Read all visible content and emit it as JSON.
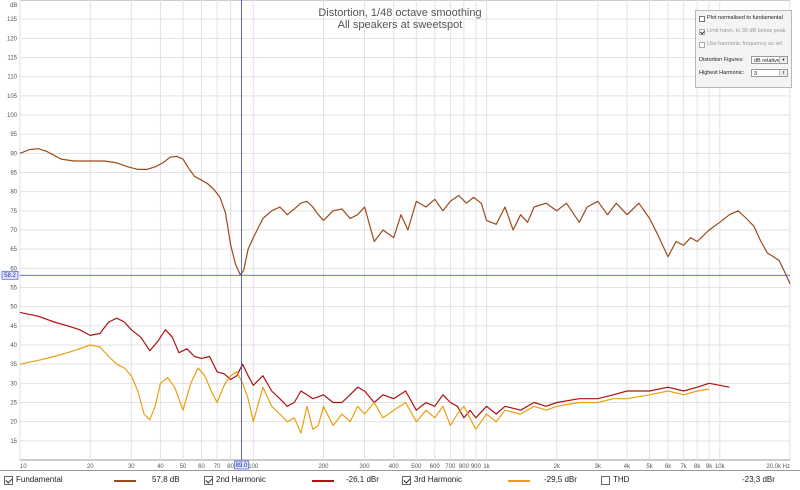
{
  "chart_data": {
    "type": "line",
    "title": "Distortion, 1/48 octave smoothing",
    "subtitle": "All speakers at sweetspot",
    "ylabel": "dB",
    "xscale": "log",
    "xlim": [
      10,
      20000
    ],
    "ylim": [
      10,
      130
    ],
    "yticks": [
      "15",
      "20",
      "25",
      "30",
      "35",
      "40",
      "45",
      "50",
      "55",
      "60",
      "65",
      "70",
      "75",
      "80",
      "85",
      "90",
      "95",
      "100",
      "105",
      "110",
      "115",
      "120",
      "125"
    ],
    "xticks": [
      {
        "v": 10,
        "t": "10"
      },
      {
        "v": 20,
        "t": "20"
      },
      {
        "v": 30,
        "t": "30"
      },
      {
        "v": 40,
        "t": "40"
      },
      {
        "v": 50,
        "t": "50"
      },
      {
        "v": 60,
        "t": "60"
      },
      {
        "v": 70,
        "t": "70"
      },
      {
        "v": 80,
        "t": "80"
      },
      {
        "v": 100,
        "t": "100"
      },
      {
        "v": 200,
        "t": "200"
      },
      {
        "v": 300,
        "t": "300"
      },
      {
        "v": 400,
        "t": "400"
      },
      {
        "v": 500,
        "t": "500"
      },
      {
        "v": 600,
        "t": "600"
      },
      {
        "v": 700,
        "t": "700"
      },
      {
        "v": 800,
        "t": "800"
      },
      {
        "v": 900,
        "t": "900"
      },
      {
        "v": 1000,
        "t": "1k"
      },
      {
        "v": 2000,
        "t": "2k"
      },
      {
        "v": 3000,
        "t": "3k"
      },
      {
        "v": 4000,
        "t": "4k"
      },
      {
        "v": 5000,
        "t": "5k"
      },
      {
        "v": 6000,
        "t": "6k"
      },
      {
        "v": 7000,
        "t": "7k"
      },
      {
        "v": 8000,
        "t": "8k"
      },
      {
        "v": 9000,
        "t": "9k"
      },
      {
        "v": 10000,
        "t": "10k"
      },
      {
        "v": 20000,
        "t": "20.0k Hz"
      }
    ],
    "cursor": {
      "x": 89.0,
      "y": 58.2,
      "x_label": "89.0",
      "y_label": "58.2"
    },
    "grid": true,
    "series": [
      {
        "name": "Fundamental",
        "color": "#9a4a1c",
        "points": [
          [
            10,
            90
          ],
          [
            11,
            91
          ],
          [
            12,
            91.2
          ],
          [
            13,
            90.5
          ],
          [
            14,
            89.5
          ],
          [
            15,
            88.5
          ],
          [
            17,
            88
          ],
          [
            20,
            88
          ],
          [
            23,
            88
          ],
          [
            26,
            87.5
          ],
          [
            29,
            86.5
          ],
          [
            32,
            85.8
          ],
          [
            35,
            85.8
          ],
          [
            38,
            86.5
          ],
          [
            41,
            87.5
          ],
          [
            44,
            89
          ],
          [
            47,
            89.2
          ],
          [
            50,
            88.5
          ],
          [
            53,
            86
          ],
          [
            56,
            84
          ],
          [
            60,
            83
          ],
          [
            64,
            82
          ],
          [
            68,
            80.5
          ],
          [
            72,
            78.5
          ],
          [
            76,
            74.5
          ],
          [
            80,
            66
          ],
          [
            84,
            61
          ],
          [
            88,
            58.3
          ],
          [
            91,
            59.5
          ],
          [
            95,
            65
          ],
          [
            100,
            68
          ],
          [
            110,
            73
          ],
          [
            120,
            75
          ],
          [
            130,
            76
          ],
          [
            140,
            74
          ],
          [
            150,
            75.5
          ],
          [
            160,
            77
          ],
          [
            170,
            77.5
          ],
          [
            180,
            76
          ],
          [
            190,
            74
          ],
          [
            200,
            72.5
          ],
          [
            220,
            75
          ],
          [
            240,
            75.5
          ],
          [
            260,
            73
          ],
          [
            280,
            74
          ],
          [
            300,
            76
          ],
          [
            330,
            67
          ],
          [
            360,
            70
          ],
          [
            400,
            68
          ],
          [
            430,
            74
          ],
          [
            460,
            70
          ],
          [
            500,
            77.5
          ],
          [
            550,
            76
          ],
          [
            600,
            78
          ],
          [
            650,
            75
          ],
          [
            700,
            77.5
          ],
          [
            760,
            79
          ],
          [
            820,
            77
          ],
          [
            880,
            78.5
          ],
          [
            950,
            77
          ],
          [
            1000,
            72.5
          ],
          [
            1100,
            71.5
          ],
          [
            1200,
            76
          ],
          [
            1300,
            70
          ],
          [
            1400,
            74
          ],
          [
            1500,
            72
          ],
          [
            1600,
            76
          ],
          [
            1800,
            77
          ],
          [
            2000,
            75
          ],
          [
            2200,
            77
          ],
          [
            2500,
            72
          ],
          [
            2700,
            76
          ],
          [
            3000,
            77.5
          ],
          [
            3300,
            74
          ],
          [
            3600,
            77
          ],
          [
            4000,
            74
          ],
          [
            4500,
            77
          ],
          [
            5000,
            73
          ],
          [
            5500,
            68
          ],
          [
            6000,
            63
          ],
          [
            6500,
            67
          ],
          [
            7000,
            66
          ],
          [
            7500,
            68
          ],
          [
            8000,
            67
          ],
          [
            9000,
            70
          ],
          [
            10000,
            72
          ],
          [
            11000,
            74
          ],
          [
            12000,
            75
          ],
          [
            13000,
            73
          ],
          [
            14000,
            71
          ],
          [
            15000,
            67
          ],
          [
            16000,
            64
          ],
          [
            17000,
            63
          ],
          [
            18000,
            62
          ],
          [
            19000,
            59
          ],
          [
            20000,
            56
          ]
        ]
      },
      {
        "name": "2nd Harmonic",
        "color": "#b01010",
        "points": [
          [
            10,
            48.5
          ],
          [
            12,
            47.5
          ],
          [
            14,
            46
          ],
          [
            16,
            45
          ],
          [
            18,
            44
          ],
          [
            20,
            42.5
          ],
          [
            22,
            43
          ],
          [
            24,
            46
          ],
          [
            26,
            47
          ],
          [
            28,
            46
          ],
          [
            30,
            44
          ],
          [
            33,
            42
          ],
          [
            36,
            38.5
          ],
          [
            39,
            41
          ],
          [
            42,
            44
          ],
          [
            45,
            42
          ],
          [
            48,
            38
          ],
          [
            52,
            39
          ],
          [
            56,
            37
          ],
          [
            60,
            36.5
          ],
          [
            65,
            37
          ],
          [
            70,
            33
          ],
          [
            75,
            32.5
          ],
          [
            80,
            31
          ],
          [
            85,
            32
          ],
          [
            90,
            35
          ],
          [
            95,
            32
          ],
          [
            100,
            29.5
          ],
          [
            110,
            32
          ],
          [
            120,
            28
          ],
          [
            130,
            26
          ],
          [
            140,
            24
          ],
          [
            150,
            25
          ],
          [
            160,
            28
          ],
          [
            170,
            27
          ],
          [
            180,
            26
          ],
          [
            190,
            26.5
          ],
          [
            200,
            27
          ],
          [
            220,
            25
          ],
          [
            240,
            25
          ],
          [
            260,
            27
          ],
          [
            280,
            29
          ],
          [
            300,
            28
          ],
          [
            330,
            25
          ],
          [
            360,
            27
          ],
          [
            400,
            26
          ],
          [
            450,
            28
          ],
          [
            500,
            23
          ],
          [
            550,
            25
          ],
          [
            600,
            24
          ],
          [
            650,
            27
          ],
          [
            700,
            25
          ],
          [
            750,
            24
          ],
          [
            800,
            21
          ],
          [
            850,
            23
          ],
          [
            900,
            21
          ],
          [
            1000,
            24
          ],
          [
            1100,
            22
          ],
          [
            1200,
            24
          ],
          [
            1400,
            23
          ],
          [
            1600,
            25
          ],
          [
            1800,
            24
          ],
          [
            2000,
            25
          ],
          [
            2500,
            26
          ],
          [
            3000,
            26
          ],
          [
            3500,
            27
          ],
          [
            4000,
            28
          ],
          [
            5000,
            28
          ],
          [
            6000,
            29
          ],
          [
            7000,
            28
          ],
          [
            8000,
            29
          ],
          [
            9000,
            30
          ],
          [
            10000,
            29.5
          ],
          [
            11000,
            29
          ]
        ]
      },
      {
        "name": "3rd Harmonic",
        "color": "#e8a010",
        "points": [
          [
            10,
            35
          ],
          [
            12,
            36
          ],
          [
            14,
            37
          ],
          [
            16,
            38
          ],
          [
            18,
            39
          ],
          [
            20,
            40
          ],
          [
            22,
            39.5
          ],
          [
            24,
            37
          ],
          [
            26,
            35
          ],
          [
            28,
            34
          ],
          [
            30,
            32
          ],
          [
            32,
            28
          ],
          [
            34,
            22
          ],
          [
            36,
            20.5
          ],
          [
            38,
            24
          ],
          [
            40,
            30
          ],
          [
            43,
            31.5
          ],
          [
            46,
            29
          ],
          [
            50,
            23
          ],
          [
            54,
            30
          ],
          [
            58,
            34
          ],
          [
            62,
            32
          ],
          [
            66,
            28
          ],
          [
            70,
            25
          ],
          [
            75,
            29.5
          ],
          [
            80,
            32
          ],
          [
            85,
            33
          ],
          [
            90,
            30
          ],
          [
            95,
            26
          ],
          [
            100,
            20
          ],
          [
            110,
            29
          ],
          [
            120,
            24
          ],
          [
            130,
            22
          ],
          [
            140,
            20
          ],
          [
            150,
            21
          ],
          [
            160,
            17
          ],
          [
            170,
            24
          ],
          [
            180,
            18
          ],
          [
            190,
            19
          ],
          [
            200,
            24
          ],
          [
            220,
            19
          ],
          [
            240,
            22
          ],
          [
            260,
            20
          ],
          [
            280,
            24
          ],
          [
            300,
            22
          ],
          [
            330,
            25
          ],
          [
            360,
            21
          ],
          [
            400,
            23
          ],
          [
            450,
            25
          ],
          [
            500,
            20
          ],
          [
            550,
            23
          ],
          [
            600,
            21
          ],
          [
            650,
            24
          ],
          [
            700,
            19
          ],
          [
            750,
            22
          ],
          [
            800,
            24
          ],
          [
            900,
            18
          ],
          [
            1000,
            22
          ],
          [
            1100,
            20
          ],
          [
            1200,
            23
          ],
          [
            1400,
            22
          ],
          [
            1600,
            24
          ],
          [
            1800,
            23
          ],
          [
            2000,
            24
          ],
          [
            2500,
            25
          ],
          [
            3000,
            25
          ],
          [
            3500,
            26
          ],
          [
            4000,
            26
          ],
          [
            5000,
            27
          ],
          [
            6000,
            28
          ],
          [
            7000,
            27
          ],
          [
            8000,
            28
          ],
          [
            9000,
            28.5
          ]
        ]
      }
    ]
  },
  "controls": {
    "plot_normalised_label": "Plot normalised to fundamental",
    "limit_label": "Limit harm. to 30 dB below peak",
    "use_harmonic_label": "Use harmonic frequency as ref.",
    "distortion_figures_label": "Distortion Figures:",
    "distortion_figures_value": "dB relative",
    "highest_harmonic_label": "Highest Harmonic:",
    "highest_harmonic_value": "3"
  },
  "legend": {
    "fundamental": {
      "label": "Fundamental",
      "value": "57,8 dB",
      "color": "#9a4a1c"
    },
    "h2": {
      "label": "2nd Harmonic",
      "value": "-26,1 dBr",
      "color": "#b01010"
    },
    "h3": {
      "label": "3rd Harmonic",
      "value": "-29,5 dBr",
      "color": "#e8a010"
    },
    "thd": {
      "label": "THD",
      "value": "-23,3 dBr"
    }
  }
}
